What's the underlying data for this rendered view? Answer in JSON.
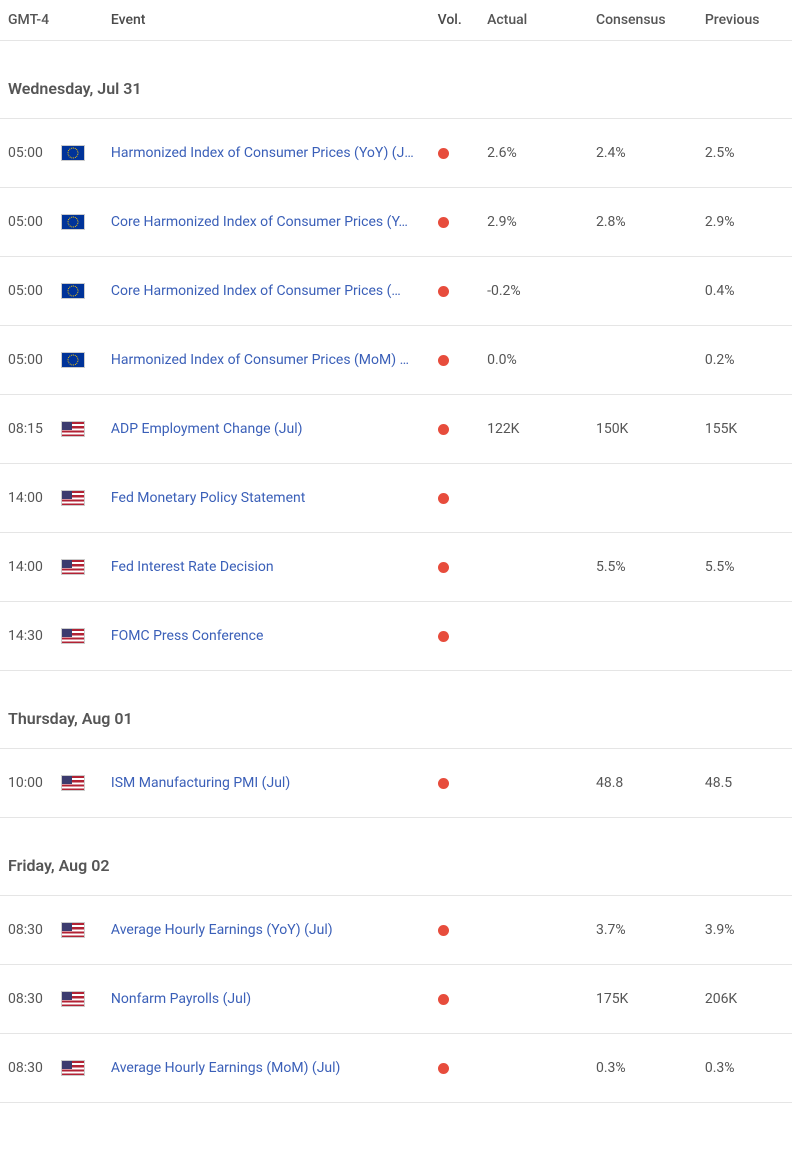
{
  "colors": {
    "vol_high": "#e74c3c",
    "link": "#3a5fb8",
    "text": "#555555",
    "border": "#e5e5e5",
    "background": "#ffffff"
  },
  "columns": {
    "time": "GMT-4",
    "event": "Event",
    "vol": "Vol.",
    "actual": "Actual",
    "consensus": "Consensus",
    "previous": "Previous"
  },
  "sections": [
    {
      "title": "Wednesday, Jul 31",
      "events": [
        {
          "time": "05:00",
          "flag": "eu",
          "event": "Harmonized Index of Consumer Prices (YoY) (J…",
          "vol_color": "#e74c3c",
          "actual": "2.6%",
          "consensus": "2.4%",
          "previous": "2.5%"
        },
        {
          "time": "05:00",
          "flag": "eu",
          "event": "Core Harmonized Index of Consumer Prices (Y…",
          "vol_color": "#e74c3c",
          "actual": "2.9%",
          "consensus": "2.8%",
          "previous": "2.9%"
        },
        {
          "time": "05:00",
          "flag": "eu",
          "event": "Core Harmonized Index of Consumer Prices (…",
          "vol_color": "#e74c3c",
          "actual": "-0.2%",
          "consensus": "",
          "previous": "0.4%"
        },
        {
          "time": "05:00",
          "flag": "eu",
          "event": "Harmonized Index of Consumer Prices (MoM) …",
          "vol_color": "#e74c3c",
          "actual": "0.0%",
          "consensus": "",
          "previous": "0.2%"
        },
        {
          "time": "08:15",
          "flag": "us",
          "event": "ADP Employment Change (Jul)",
          "vol_color": "#e74c3c",
          "actual": "122K",
          "consensus": "150K",
          "previous": "155K"
        },
        {
          "time": "14:00",
          "flag": "us",
          "event": "Fed Monetary Policy Statement",
          "vol_color": "#e74c3c",
          "actual": "",
          "consensus": "",
          "previous": ""
        },
        {
          "time": "14:00",
          "flag": "us",
          "event": "Fed Interest Rate Decision",
          "vol_color": "#e74c3c",
          "actual": "",
          "consensus": "5.5%",
          "previous": "5.5%"
        },
        {
          "time": "14:30",
          "flag": "us",
          "event": "FOMC Press Conference",
          "vol_color": "#e74c3c",
          "actual": "",
          "consensus": "",
          "previous": ""
        }
      ]
    },
    {
      "title": "Thursday, Aug 01",
      "events": [
        {
          "time": "10:00",
          "flag": "us",
          "event": "ISM Manufacturing PMI (Jul)",
          "vol_color": "#e74c3c",
          "actual": "",
          "consensus": "48.8",
          "previous": "48.5"
        }
      ]
    },
    {
      "title": "Friday, Aug 02",
      "events": [
        {
          "time": "08:30",
          "flag": "us",
          "event": "Average Hourly Earnings (YoY) (Jul)",
          "vol_color": "#e74c3c",
          "actual": "",
          "consensus": "3.7%",
          "previous": "3.9%"
        },
        {
          "time": "08:30",
          "flag": "us",
          "event": "Nonfarm Payrolls (Jul)",
          "vol_color": "#e74c3c",
          "actual": "",
          "consensus": "175K",
          "previous": "206K"
        },
        {
          "time": "08:30",
          "flag": "us",
          "event": "Average Hourly Earnings (MoM) (Jul)",
          "vol_color": "#e74c3c",
          "actual": "",
          "consensus": "0.3%",
          "previous": "0.3%"
        }
      ]
    }
  ]
}
